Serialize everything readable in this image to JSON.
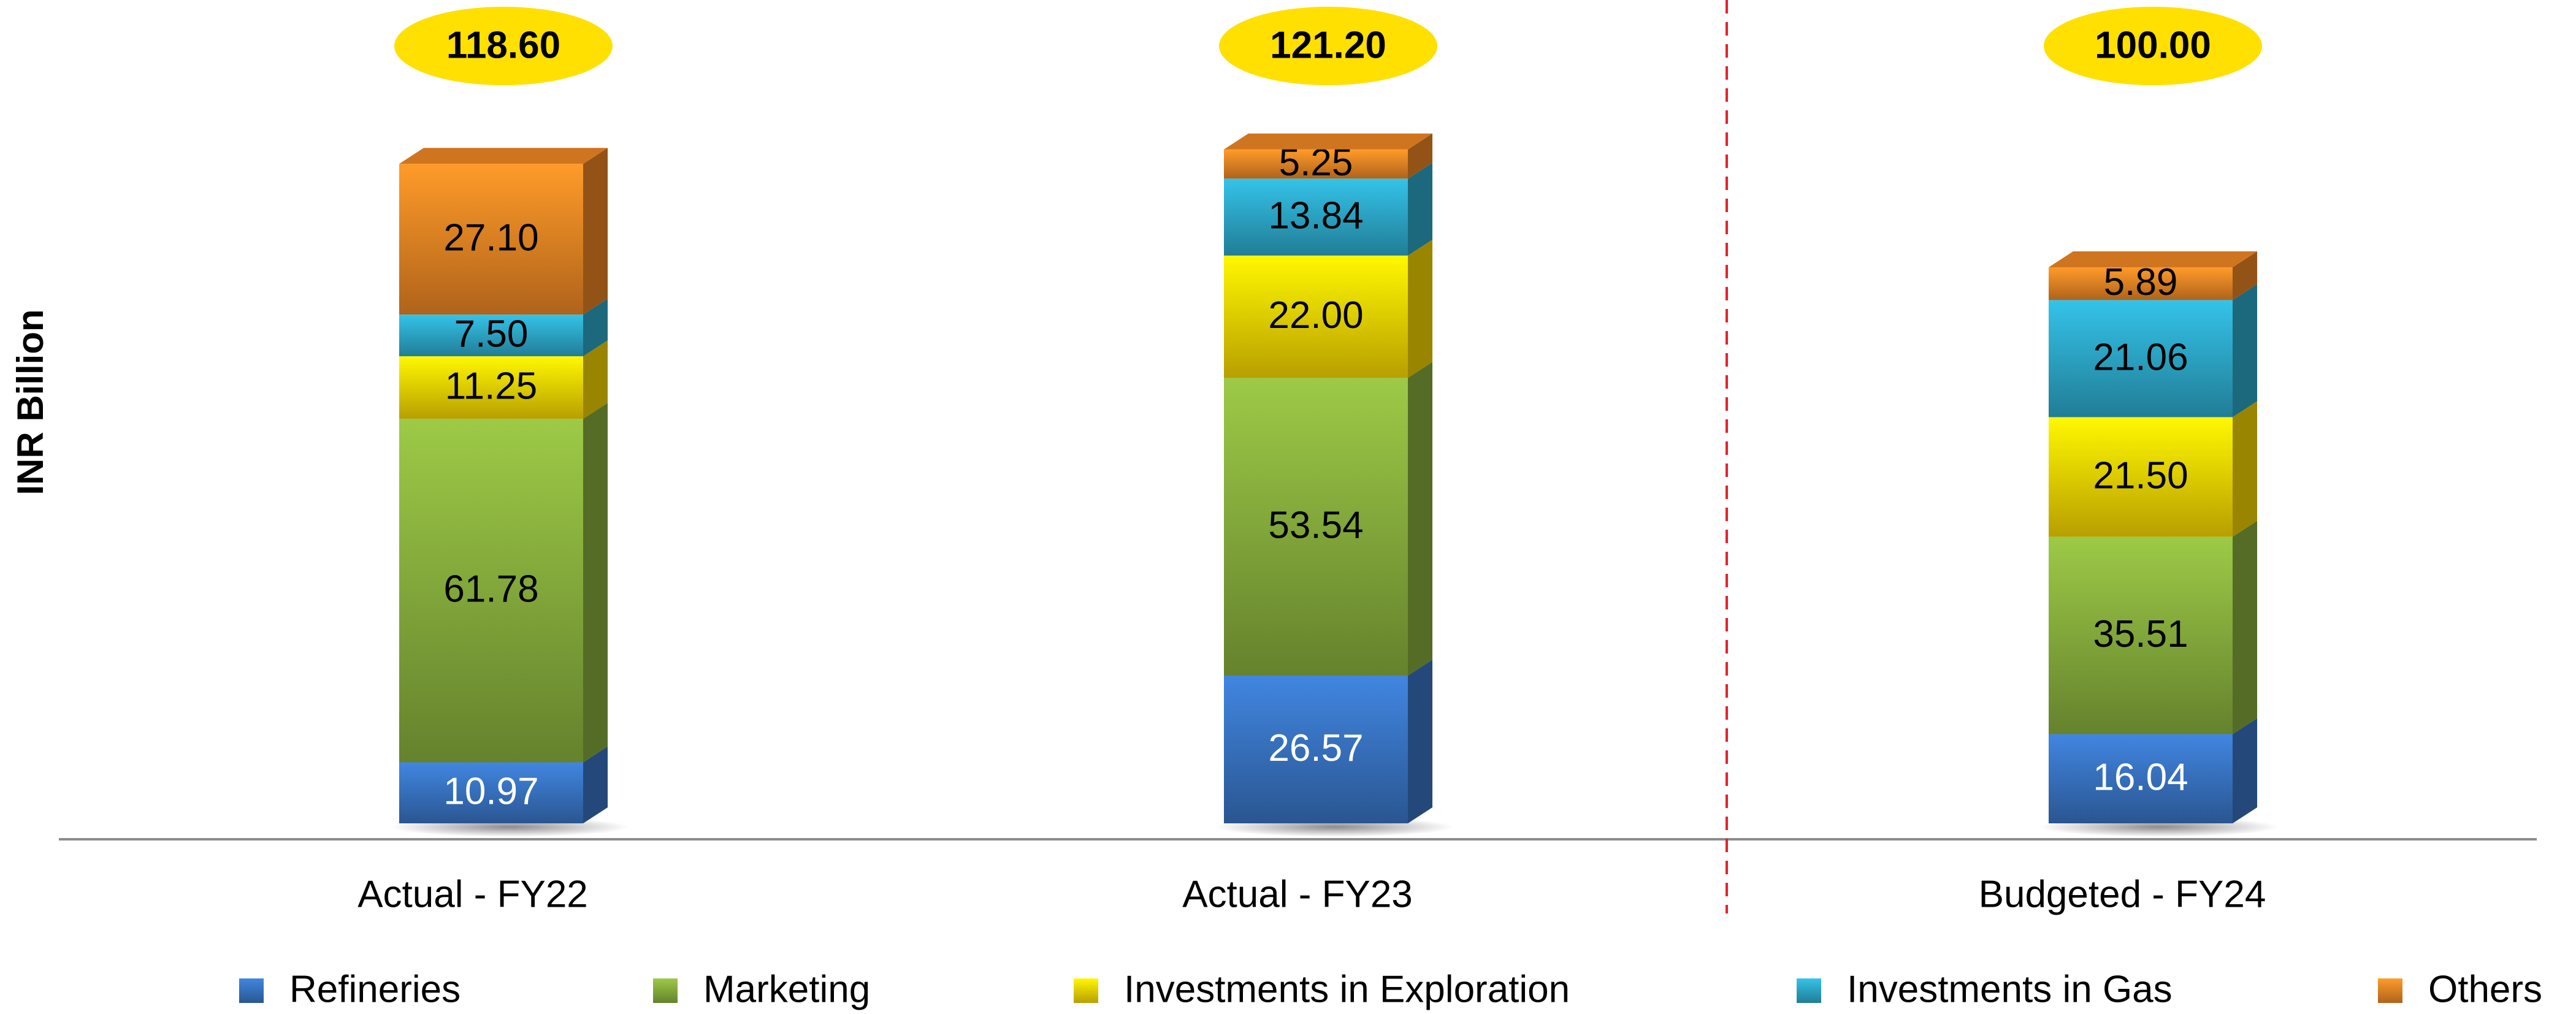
{
  "chart_data": {
    "type": "stacked_bar_3d",
    "y_label": "INR Billion",
    "categories": [
      "Actual - FY22",
      "Actual - FY23",
      "Budgeted - FY24"
    ],
    "series": [
      {
        "name": "Refineries",
        "color": "#3a78c9",
        "label_color": "#ffffff",
        "values": [
          10.97,
          26.57,
          16.04
        ],
        "value_labels": [
          "10.97",
          "26.57",
          "16.04"
        ]
      },
      {
        "name": "Marketing",
        "color": "#8cb43f",
        "label_color": "#000000",
        "values": [
          61.78,
          53.54,
          35.51
        ],
        "value_labels": [
          "61.78",
          "53.54",
          "35.51"
        ]
      },
      {
        "name": "Investments in Exploration",
        "color": "#ffdd00",
        "label_color": "#000000",
        "values": [
          11.25,
          22.0,
          21.5
        ],
        "value_labels": [
          "11.25",
          "22.00",
          "21.50"
        ]
      },
      {
        "name": "Investments in Gas",
        "color": "#2eaed0",
        "label_color": "#000000",
        "values": [
          7.5,
          13.84,
          21.06
        ],
        "value_labels": [
          "7.50",
          "13.84",
          "21.06"
        ]
      },
      {
        "name": "Others",
        "color": "#f58a25",
        "label_color": "#000000",
        "values": [
          27.1,
          5.25,
          5.89
        ],
        "value_labels": [
          "27.10",
          "5.25",
          "5.89"
        ]
      }
    ],
    "totals": [
      118.6,
      121.2,
      100.0
    ],
    "total_labels": [
      "118.60",
      "121.20",
      "100.00"
    ],
    "total_badge_color": "#ffe000",
    "legend": "bottom"
  }
}
